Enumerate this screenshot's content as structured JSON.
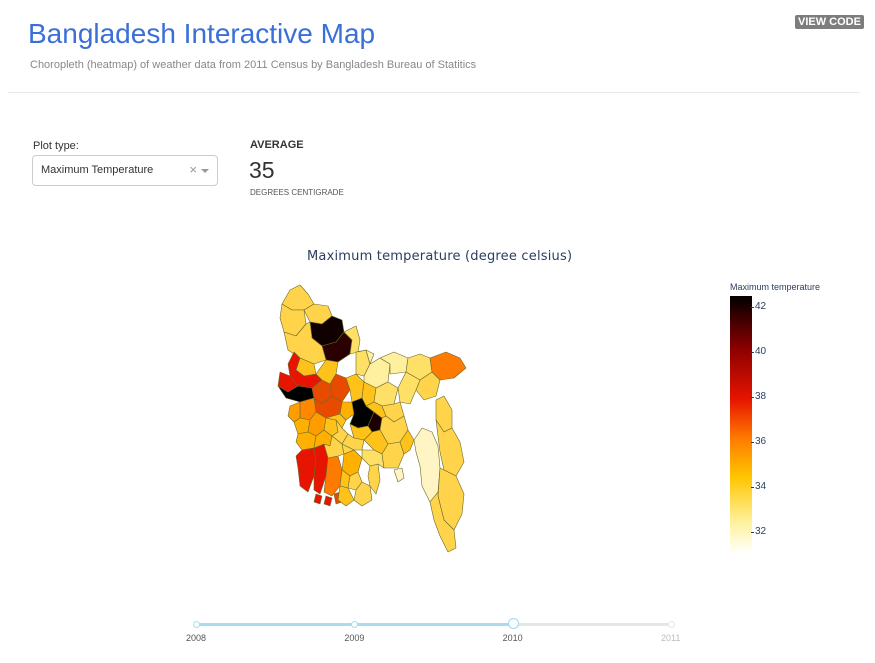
{
  "header": {
    "title": "Bangladesh Interactive Map",
    "subtitle": "Choropleth (heatmap) of weather data from 2011 Census by Bangladesh Bureau of Statitics",
    "view_code_label": "VIEW CODE"
  },
  "controls": {
    "plot_type_label": "Plot type:",
    "plot_type_value": "Maximum Temperature",
    "clear_glyph": "×"
  },
  "summary": {
    "label": "AVERAGE",
    "value": "35",
    "unit": "DEGREES CENTIGRADE"
  },
  "map": {
    "title": "Maximum temperature (degree celsius)",
    "colorbar_title": "Maximum temperature",
    "colorbar_ticks": [
      "42",
      "40",
      "38",
      "36",
      "34",
      "32"
    ],
    "colorbar_tick_values": [
      42,
      40,
      38,
      36,
      34,
      32
    ],
    "color_range": [
      31,
      42.5
    ],
    "colors": {
      "hottest": "#000000",
      "very_hot": "#8a0000",
      "hot": "#e61400",
      "warm": "#ff7a00",
      "mild": "#ffc400",
      "cool": "#fff2a0"
    }
  },
  "slider": {
    "marks": [
      "2008",
      "2009",
      "2010",
      "2011"
    ],
    "selected": "2010",
    "selected_index": 2
  }
}
